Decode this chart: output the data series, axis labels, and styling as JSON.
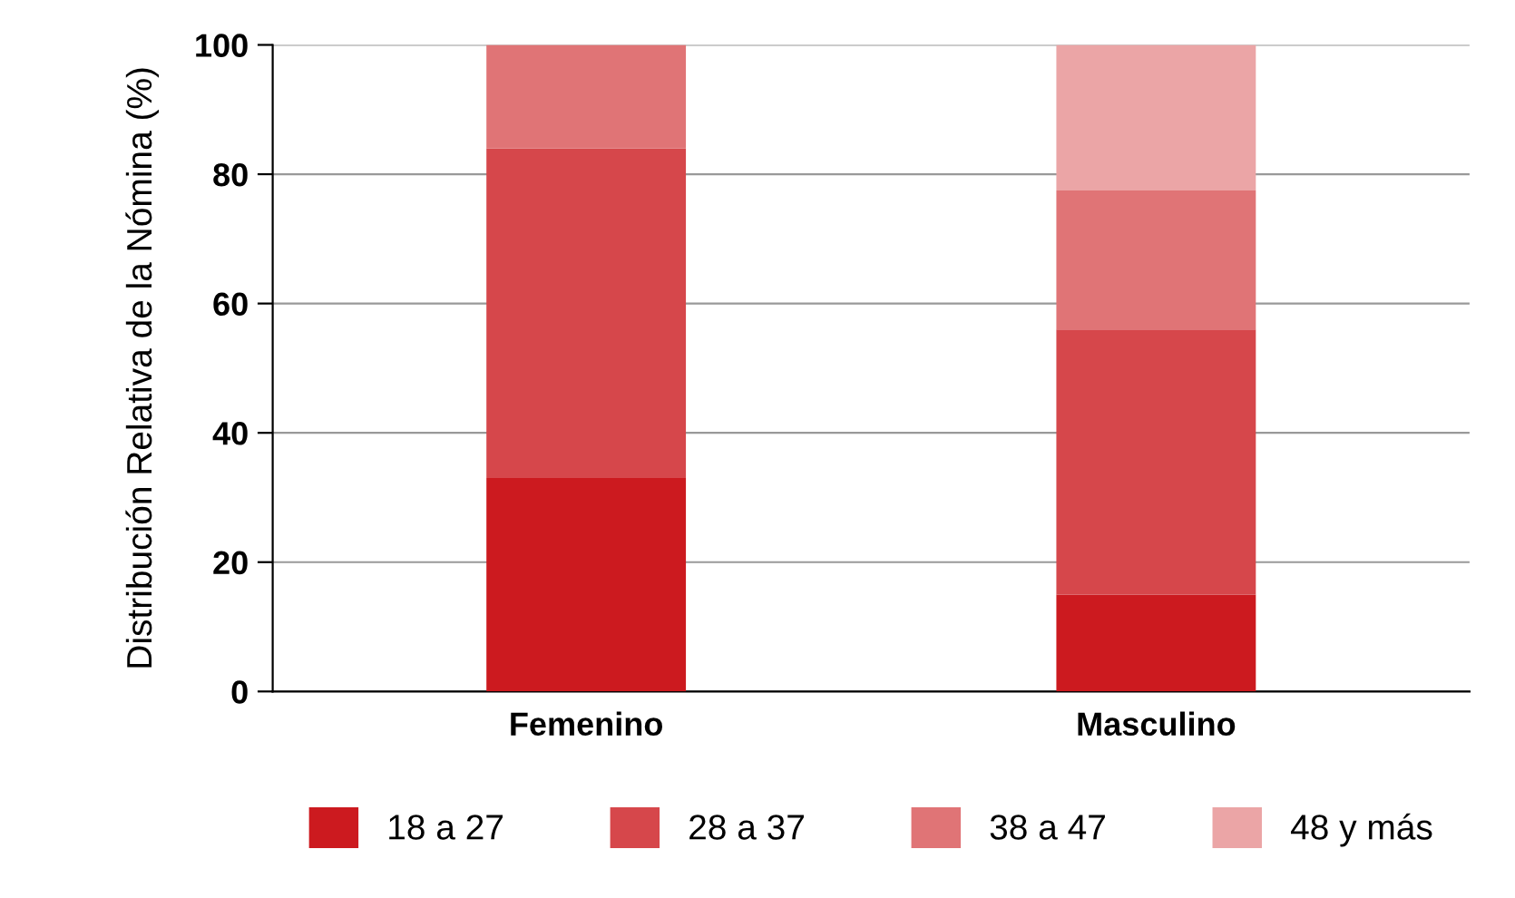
{
  "chart_data": {
    "type": "bar",
    "stacked": true,
    "ylabel": "Distribución Relativa de la Nómina (%)",
    "categories": [
      "Femenino",
      "Masculino"
    ],
    "series": [
      {
        "name": "18 a 27",
        "color": "#cc1a1f",
        "values": [
          33,
          15
        ]
      },
      {
        "name": "28 a 37",
        "color": "#d6474b",
        "values": [
          51,
          41
        ]
      },
      {
        "name": "38 a 47",
        "color": "#e07476",
        "values": [
          16,
          21.5
        ]
      },
      {
        "name": "48 y más",
        "color": "#eba5a6",
        "values": [
          0,
          22.5
        ]
      }
    ],
    "ylim": [
      0,
      100
    ],
    "yticks": [
      0,
      20,
      40,
      60,
      80,
      100
    ],
    "grid": "y",
    "legend": "bottom"
  }
}
